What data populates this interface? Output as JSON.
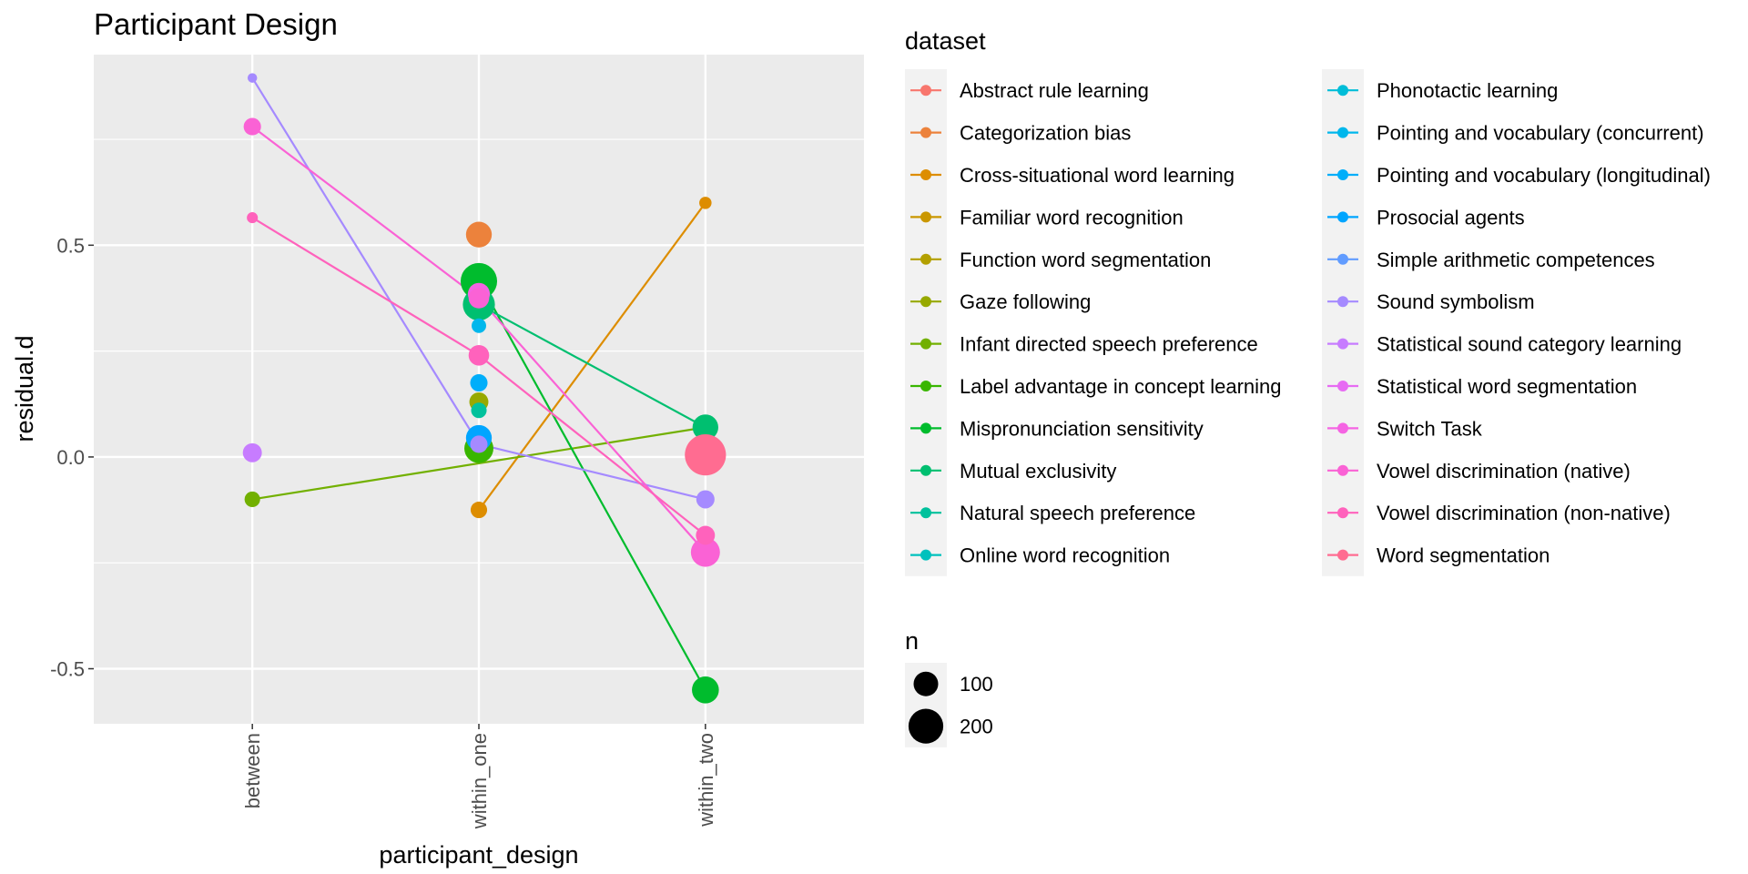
{
  "chart_data": {
    "type": "scatter",
    "title": "Participant Design",
    "xlabel": "participant_design",
    "ylabel": "residual.d",
    "categories": [
      "between",
      "within_one",
      "within_two"
    ],
    "ylim": [
      -0.63,
      0.95
    ],
    "yticks": [
      -0.5,
      0.0,
      0.5
    ],
    "ytick_labels": [
      "-0.5",
      "0.0",
      "0.5"
    ],
    "grid": true,
    "legend_position": "right",
    "legend_title": "dataset",
    "size_legend_title": "n",
    "size_legend": [
      {
        "label": "100",
        "n": 100
      },
      {
        "label": "200",
        "n": 200
      }
    ],
    "series": [
      {
        "name": "Abstract rule learning",
        "color": "#F8766D",
        "points": []
      },
      {
        "name": "Categorization bias",
        "color": "#EC823C",
        "points": [
          {
            "x": "within_one",
            "y": 0.525,
            "n": 110
          }
        ]
      },
      {
        "name": "Cross-situational word learning",
        "color": "#DD8D00",
        "points": [
          {
            "x": "within_one",
            "y": -0.125,
            "n": 45
          },
          {
            "x": "within_two",
            "y": 0.6,
            "n": 25
          }
        ]
      },
      {
        "name": "Familiar word recognition",
        "color": "#CA9700",
        "points": []
      },
      {
        "name": "Function word segmentation",
        "color": "#B3A000",
        "points": []
      },
      {
        "name": "Gaze following",
        "color": "#97A900",
        "points": [
          {
            "x": "within_one",
            "y": 0.13,
            "n": 60
          }
        ]
      },
      {
        "name": "Infant directed speech preference",
        "color": "#72B000",
        "points": [
          {
            "x": "between",
            "y": -0.1,
            "n": 40
          },
          {
            "x": "within_two",
            "y": 0.07,
            "n": 40
          }
        ]
      },
      {
        "name": "Label advantage in concept learning",
        "color": "#39B600",
        "points": [
          {
            "x": "within_one",
            "y": 0.02,
            "n": 140
          }
        ]
      },
      {
        "name": "Mispronunciation sensitivity",
        "color": "#00BC2D",
        "points": [
          {
            "x": "within_one",
            "y": 0.415,
            "n": 220
          },
          {
            "x": "within_two",
            "y": -0.55,
            "n": 120
          }
        ]
      },
      {
        "name": "Mutual exclusivity",
        "color": "#00BF70",
        "points": [
          {
            "x": "within_one",
            "y": 0.36,
            "n": 170
          },
          {
            "x": "within_two",
            "y": 0.07,
            "n": 110
          }
        ]
      },
      {
        "name": "Natural speech preference",
        "color": "#00C19C",
        "points": [
          {
            "x": "within_one",
            "y": 0.11,
            "n": 40
          }
        ]
      },
      {
        "name": "Online word recognition",
        "color": "#00C1BD",
        "points": []
      },
      {
        "name": "Phonotactic learning",
        "color": "#00BDD8",
        "points": []
      },
      {
        "name": "Pointing and vocabulary (concurrent)",
        "color": "#00B7EC",
        "points": [
          {
            "x": "within_one",
            "y": 0.31,
            "n": 35
          }
        ]
      },
      {
        "name": "Pointing and vocabulary (longitudinal)",
        "color": "#00AEFA",
        "points": [
          {
            "x": "within_one",
            "y": 0.175,
            "n": 50
          }
        ]
      },
      {
        "name": "Prosocial agents",
        "color": "#00A5FF",
        "points": [
          {
            "x": "within_one",
            "y": 0.045,
            "n": 110
          }
        ]
      },
      {
        "name": "Simple arithmetic competences",
        "color": "#619CFF",
        "points": []
      },
      {
        "name": "Sound symbolism",
        "color": "#A58AFF",
        "points": [
          {
            "x": "between",
            "y": 0.895,
            "n": 15
          },
          {
            "x": "within_one",
            "y": 0.03,
            "n": 50
          },
          {
            "x": "within_two",
            "y": -0.1,
            "n": 55
          }
        ]
      },
      {
        "name": "Statistical sound category learning",
        "color": "#C77CFF",
        "points": [
          {
            "x": "between",
            "y": 0.01,
            "n": 60
          }
        ]
      },
      {
        "name": "Statistical word segmentation",
        "color": "#E76BF3",
        "points": []
      },
      {
        "name": "Switch Task",
        "color": "#F564E3",
        "points": [
          {
            "x": "within_one",
            "y": 0.385,
            "n": 80
          }
        ]
      },
      {
        "name": "Vowel discrimination (native)",
        "color": "#FA62D5",
        "points": [
          {
            "x": "between",
            "y": 0.78,
            "n": 50
          },
          {
            "x": "within_one",
            "y": 0.375,
            "n": 70
          },
          {
            "x": "within_two",
            "y": -0.225,
            "n": 140
          }
        ]
      },
      {
        "name": "Vowel discrimination (non-native)",
        "color": "#FF62BC",
        "points": [
          {
            "x": "between",
            "y": 0.565,
            "n": 20
          },
          {
            "x": "within_one",
            "y": 0.24,
            "n": 70
          },
          {
            "x": "within_two",
            "y": -0.185,
            "n": 60
          }
        ]
      },
      {
        "name": "Word segmentation",
        "color": "#FF6C91",
        "points": [
          {
            "x": "within_two",
            "y": 0.005,
            "n": 280
          }
        ]
      }
    ]
  }
}
